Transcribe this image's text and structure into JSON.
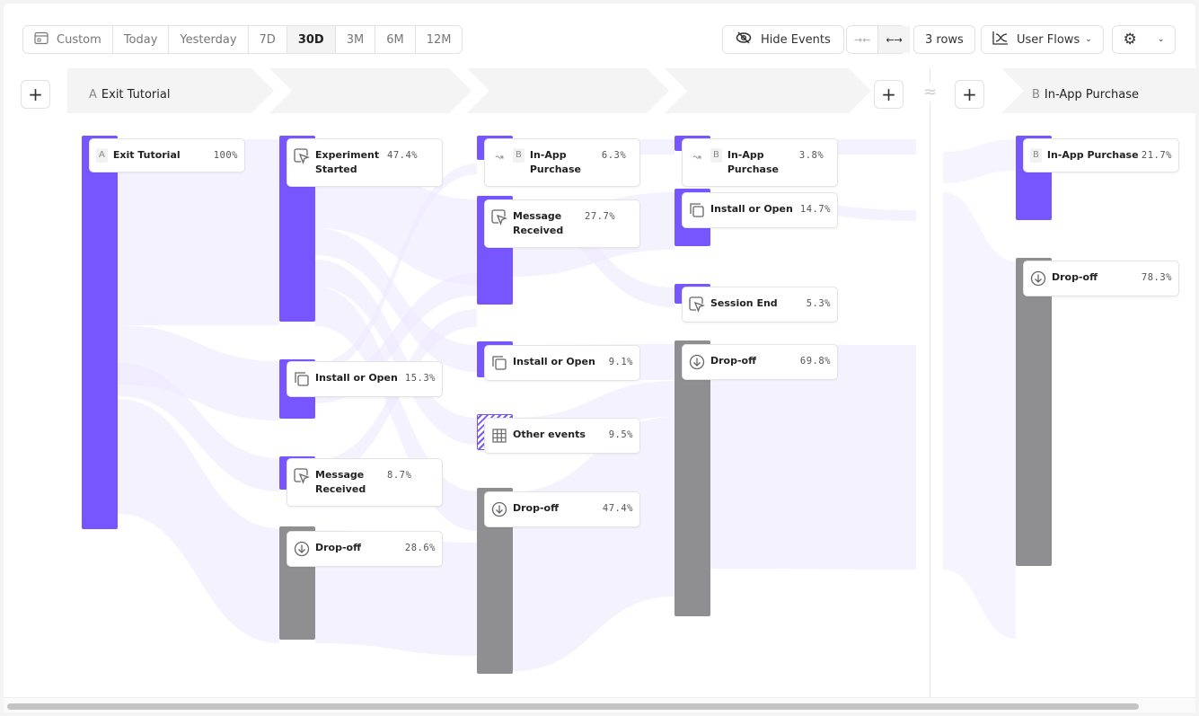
{
  "toolbar": {
    "date_ranges": [
      "Custom",
      "Today",
      "Yesterday",
      "7D",
      "30D",
      "3M",
      "6M",
      "12M"
    ],
    "selected_range": "30D",
    "hide_events": "Hide Events",
    "rows": "3 rows",
    "view": "User Flows"
  },
  "steps": {
    "a_letter": "A",
    "a_label": "Exit Tutorial",
    "b_letter": "B",
    "b_label": "In-App Purchase"
  },
  "colors": {
    "event": "#7856ff",
    "dropoff": "#8f8f91",
    "flow": "#ece8ff"
  },
  "nodes": [
    {
      "letter": "A",
      "label": "Exit Tutorial",
      "pct": "100%",
      "type": "event",
      "icon": "none"
    },
    {
      "label": "Experiment Started",
      "pct": "47.4%",
      "type": "event",
      "icon": "cursor-click-icon"
    },
    {
      "label": "Install or Open",
      "pct": "15.3%",
      "type": "event",
      "icon": "copy-icon"
    },
    {
      "label": "Message Received",
      "pct": "8.7%",
      "type": "event",
      "icon": "cursor-click-icon"
    },
    {
      "label": "Drop-off",
      "pct": "28.6%",
      "type": "dropoff",
      "icon": "arrow-down-circle-icon"
    },
    {
      "letter": "B",
      "label": "In-App Purchase",
      "pct": "6.3%",
      "type": "event",
      "icon": "redirect-icon"
    },
    {
      "label": "Message Received",
      "pct": "27.7%",
      "type": "event",
      "icon": "cursor-click-icon"
    },
    {
      "label": "Install or Open",
      "pct": "9.1%",
      "type": "event",
      "icon": "copy-icon"
    },
    {
      "label": "Other events",
      "pct": "9.5%",
      "type": "other",
      "icon": "grid-icon"
    },
    {
      "label": "Drop-off",
      "pct": "47.4%",
      "type": "dropoff",
      "icon": "arrow-down-circle-icon"
    },
    {
      "letter": "B",
      "label": "In-App Purchase",
      "pct": "3.8%",
      "type": "event",
      "icon": "redirect-icon"
    },
    {
      "label": "Install or Open",
      "pct": "14.7%",
      "type": "event",
      "icon": "copy-icon"
    },
    {
      "label": "Session End",
      "pct": "5.3%",
      "type": "event",
      "icon": "cursor-click-icon"
    },
    {
      "label": "Drop-off",
      "pct": "69.8%",
      "type": "dropoff",
      "icon": "arrow-down-circle-icon"
    },
    {
      "letter": "B",
      "label": "In-App Purchase",
      "pct": "21.7%",
      "type": "event",
      "icon": "none"
    },
    {
      "label": "Drop-off",
      "pct": "78.3%",
      "type": "dropoff",
      "icon": "arrow-down-circle-icon"
    }
  ]
}
